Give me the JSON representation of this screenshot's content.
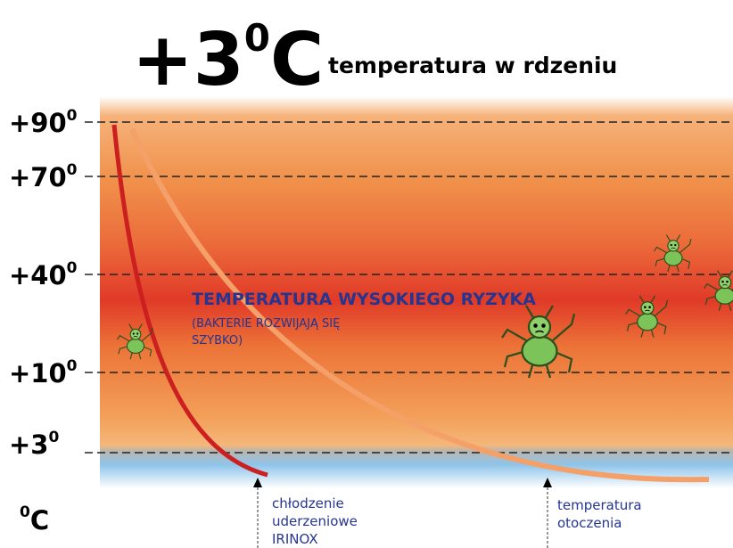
{
  "title": {
    "value": "+3",
    "sup": "0",
    "unit": "C",
    "caption": "temperatura w rdzeniu"
  },
  "scale": [
    {
      "label": "+90",
      "sup": "0"
    },
    {
      "label": "+70",
      "sup": "0"
    },
    {
      "label": "+40",
      "sup": "0"
    },
    {
      "label": "+10",
      "sup": "0"
    },
    {
      "label": "+3",
      "sup": "0"
    }
  ],
  "unit": {
    "sup": "0",
    "label": "C"
  },
  "zone": {
    "title": "TEMPERATURA WYSOKIEGO RYZYKA",
    "lines": [
      "(BAKTERIE ROZWIJAJĄ SIĘ",
      "SZYBKO)"
    ]
  },
  "curves": [
    {
      "lines": [
        "chłodzenie",
        "uderzeniowe",
        "IRINOX"
      ]
    },
    {
      "lines": [
        "temperatura",
        "otoczenia"
      ]
    }
  ]
}
